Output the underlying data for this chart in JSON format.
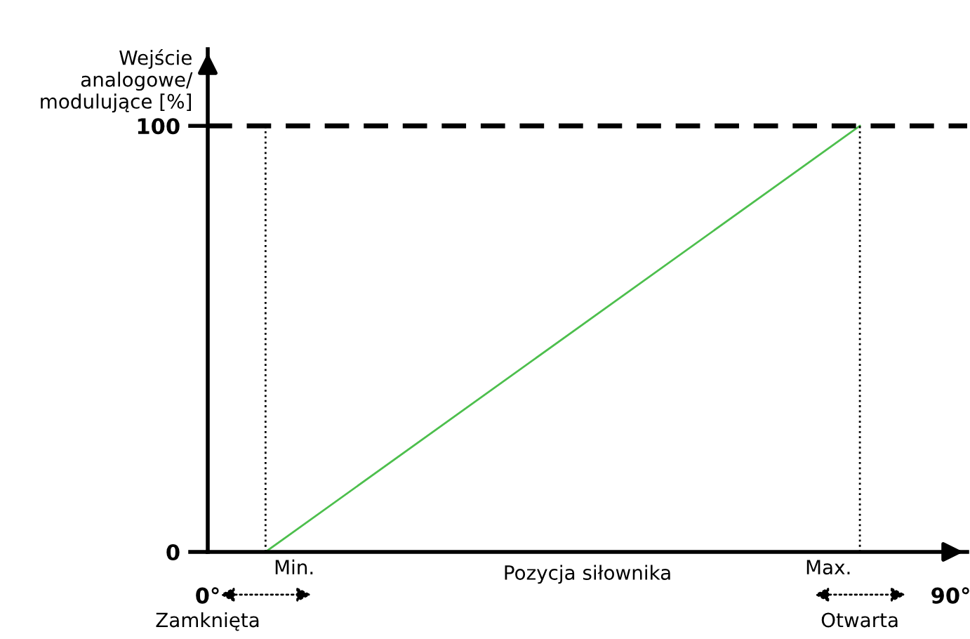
{
  "chart_data": {
    "type": "line",
    "xlabel": "Pozycja siłownika",
    "ylabel": "Wejście\nanalogowe/\nmodulujące [%]",
    "x": [
      7,
      79
    ],
    "series": [
      {
        "color": "#4dbf4d",
        "values": [
          0,
          100
        ]
      }
    ],
    "xlim": [
      0,
      92
    ],
    "ylim": [
      0,
      118
    ],
    "xticks": [
      {
        "value": 0,
        "label": "0°"
      },
      {
        "value": 90,
        "label": "90°"
      }
    ],
    "yticks": [
      0,
      100
    ],
    "ref_lines": [
      {
        "axis": "x",
        "value": 7,
        "label": "Min.",
        "line_style": "dotted",
        "color": "#000000"
      },
      {
        "axis": "x",
        "value": 79,
        "label": "Max.",
        "line_style": "dotted",
        "color": "#000000"
      },
      {
        "axis": "y",
        "value": 100,
        "line_style": "dashed",
        "color": "#000000"
      }
    ],
    "annotations": [
      "Zamknięta",
      "Otwarta"
    ],
    "grid": false,
    "legend": false,
    "marker": "none",
    "line_style": "solid"
  }
}
